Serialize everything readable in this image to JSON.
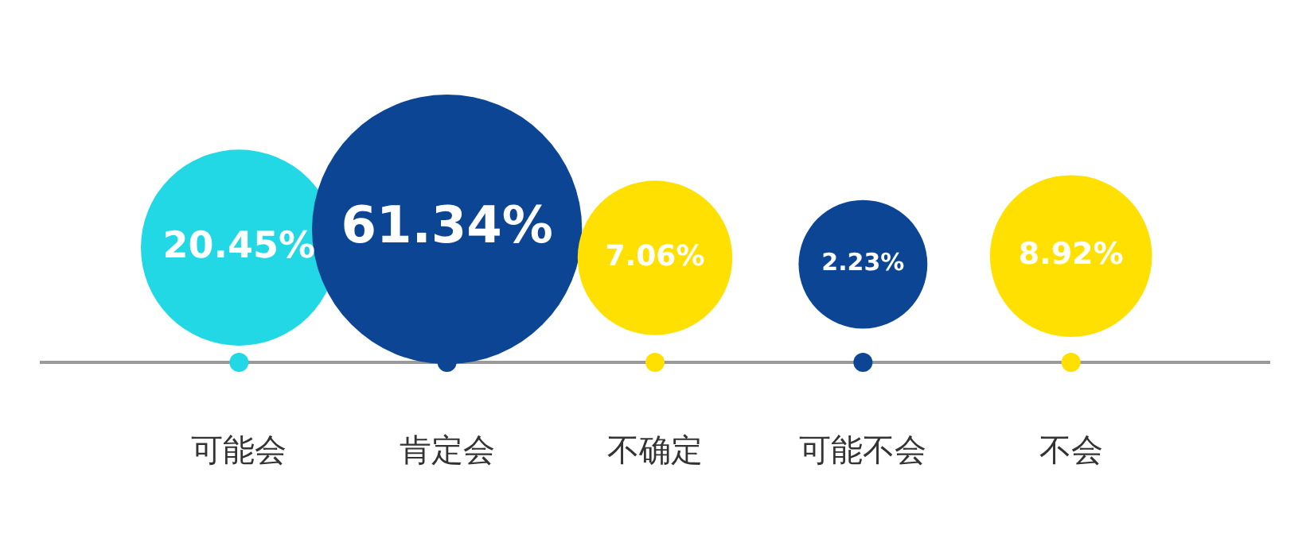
{
  "chart_data": {
    "type": "other",
    "categories": [
      "可能会",
      "肯定会",
      "不确定",
      "可能不会",
      "不会"
    ],
    "values": [
      20.45,
      61.34,
      7.06,
      2.23,
      8.92
    ],
    "colors": [
      "#22d8e4",
      "#0b4594",
      "#ffe000",
      "#0b4594",
      "#ffe000"
    ],
    "value_labels": [
      "20.45%",
      "61.34%",
      "7.06%",
      "2.23%",
      "8.92%"
    ]
  }
}
